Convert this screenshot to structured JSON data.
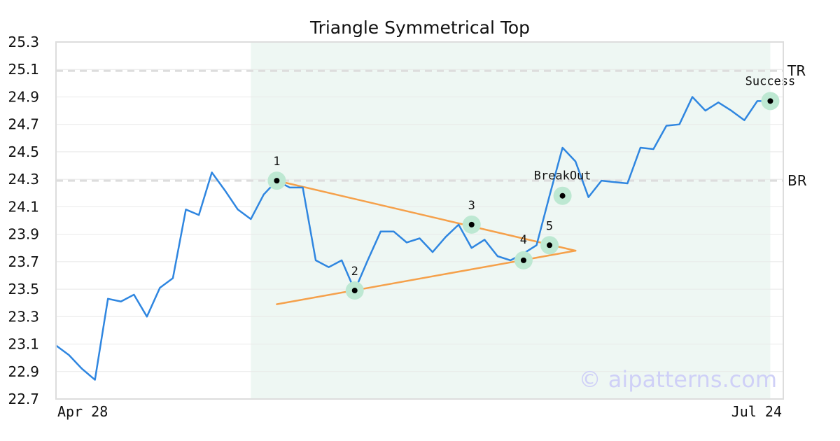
{
  "chart_data": {
    "type": "line",
    "title": "Triangle Symmetrical Top",
    "xlabel": "",
    "ylabel": "",
    "x_tick_labels": [
      "Apr 28",
      "Jul 24"
    ],
    "x_range": [
      0,
      56
    ],
    "ylim": [
      22.7,
      25.3
    ],
    "y_ticks": [
      22.7,
      22.9,
      23.1,
      23.3,
      23.5,
      23.7,
      23.9,
      24.1,
      24.3,
      24.5,
      24.7,
      24.9,
      25.1,
      25.3
    ],
    "grid": true,
    "series": [
      {
        "values": [
          23.09,
          23.02,
          22.92,
          22.84,
          23.43,
          23.41,
          23.46,
          23.3,
          23.51,
          23.58,
          24.08,
          24.04,
          24.35,
          24.22,
          24.08,
          24.01,
          24.19,
          24.29,
          24.24,
          24.24,
          23.71,
          23.66,
          23.71,
          23.49,
          23.71,
          23.92,
          23.92,
          23.84,
          23.87,
          23.77,
          23.88,
          23.97,
          23.8,
          23.86,
          23.74,
          23.71,
          23.76,
          23.82,
          24.18,
          24.53,
          24.43,
          24.17,
          24.29,
          24.28,
          24.27,
          24.53,
          24.52,
          24.69,
          24.7,
          24.9,
          24.8,
          24.86,
          24.8,
          24.73,
          24.87,
          24.87
        ]
      }
    ],
    "highlight_region": [
      15,
      55
    ],
    "levels": [
      {
        "label": "TR",
        "value": 25.09
      },
      {
        "label": "BR",
        "value": 24.29
      }
    ],
    "trendlines": [
      {
        "from": [
          17,
          24.29
        ],
        "to": [
          40,
          23.78
        ]
      },
      {
        "from": [
          17,
          23.39
        ],
        "to": [
          40,
          23.78
        ]
      }
    ],
    "points": [
      {
        "label": "1",
        "x": 17,
        "y": 24.29
      },
      {
        "label": "2",
        "x": 23,
        "y": 23.49
      },
      {
        "label": "3",
        "x": 32,
        "y": 23.97
      },
      {
        "label": "4",
        "x": 36,
        "y": 23.71
      },
      {
        "label": "5",
        "x": 38,
        "y": 23.82
      },
      {
        "label": "BreakOut",
        "x": 39,
        "y": 24.18
      },
      {
        "label": "Success",
        "x": 55,
        "y": 24.87
      }
    ],
    "colors": {
      "line": "#2f86e0",
      "trendline": "#f5a04a",
      "point_halo": "#bde8d2",
      "region": "#eef7f3",
      "level": "#dddddd"
    }
  },
  "watermark": "© aipatterns.com"
}
